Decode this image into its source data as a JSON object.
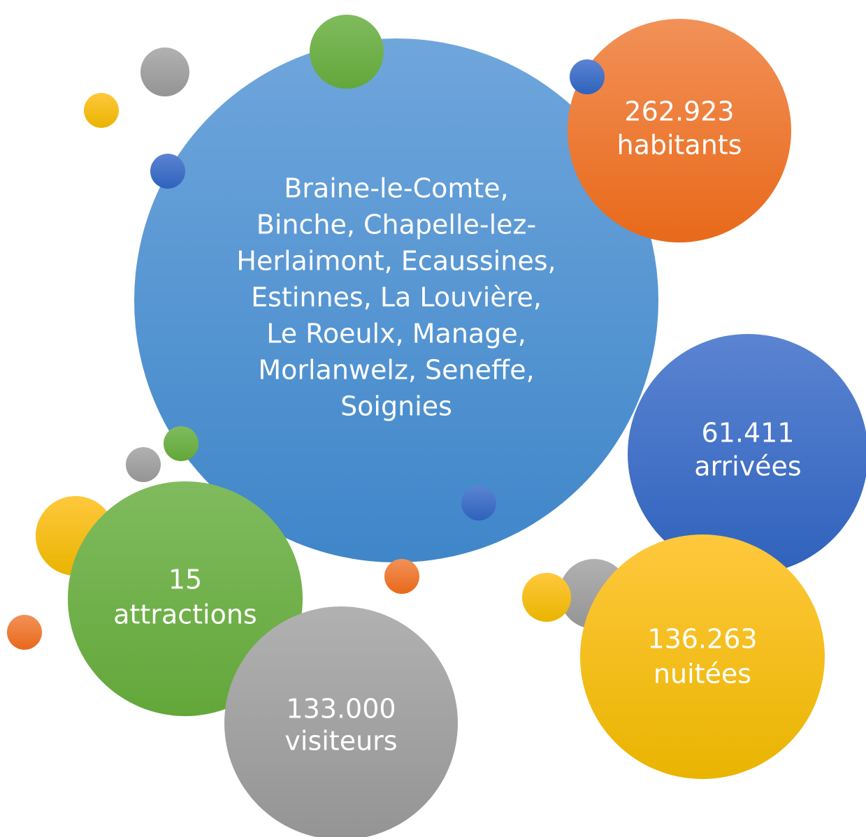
{
  "bubbles": [
    {
      "lines": [
        "Braine-le-Comte,",
        "Binche, Chapelle-lez-",
        "Herlaimont, Ecaussines,",
        "Estinnes, La Louvière,",
        "Le Roeulx, Manage,",
        "Morlanwelz, Seneffe,",
        "Soignies"
      ]
    },
    {
      "lines": [
        "262.923",
        "habitants"
      ]
    },
    {
      "lines": [
        "61.411",
        "arrivées"
      ]
    },
    {
      "lines": [
        "136.263",
        "nuitées"
      ]
    },
    {
      "lines": [
        "15",
        "attractions"
      ]
    },
    {
      "lines": [
        "133.000",
        "visiteurs"
      ]
    }
  ]
}
